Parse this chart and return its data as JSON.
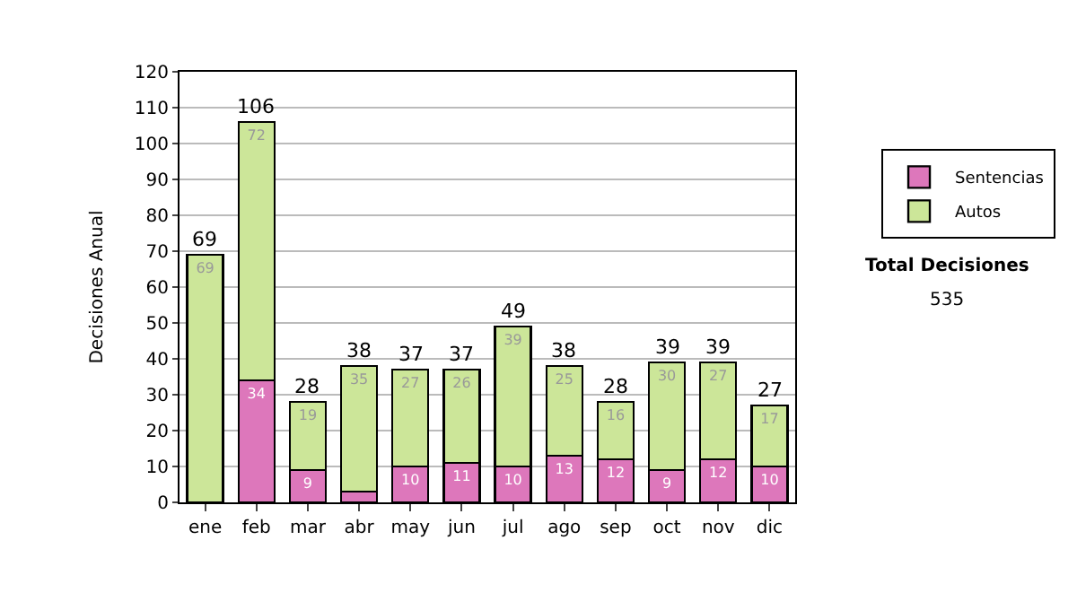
{
  "chart_data": {
    "type": "bar",
    "stacked": true,
    "ylabel": "Decisiones Anual",
    "categories": [
      "ene",
      "feb",
      "mar",
      "abr",
      "may",
      "jun",
      "jul",
      "ago",
      "sep",
      "oct",
      "nov",
      "dic"
    ],
    "series": [
      {
        "name": "Sentencias",
        "color": "#dd77bb",
        "values": [
          0,
          34,
          9,
          3,
          10,
          11,
          10,
          13,
          12,
          9,
          12,
          10
        ],
        "value_labels": [
          null,
          "34",
          "9",
          null,
          "10",
          "11",
          "10",
          "13",
          "12",
          "9",
          "12",
          "10"
        ]
      },
      {
        "name": "Autos",
        "color": "#cce699",
        "values": [
          69,
          72,
          19,
          35,
          27,
          26,
          39,
          25,
          16,
          30,
          27,
          17
        ],
        "value_labels": [
          "69",
          "72",
          "19",
          "35",
          "27",
          "26",
          "39",
          "25",
          "16",
          "30",
          "27",
          "17"
        ]
      }
    ],
    "totals": [
      "69",
      "106",
      "28",
      "38",
      "37",
      "37",
      "49",
      "38",
      "28",
      "39",
      "39",
      "27"
    ],
    "ylim": [
      0,
      120
    ],
    "yticks": [
      0,
      10,
      20,
      30,
      40,
      50,
      60,
      70,
      80,
      90,
      100,
      110,
      120
    ],
    "grid": "y",
    "legend": "right",
    "annotations": [
      "Total Decisiones",
      "535"
    ]
  }
}
